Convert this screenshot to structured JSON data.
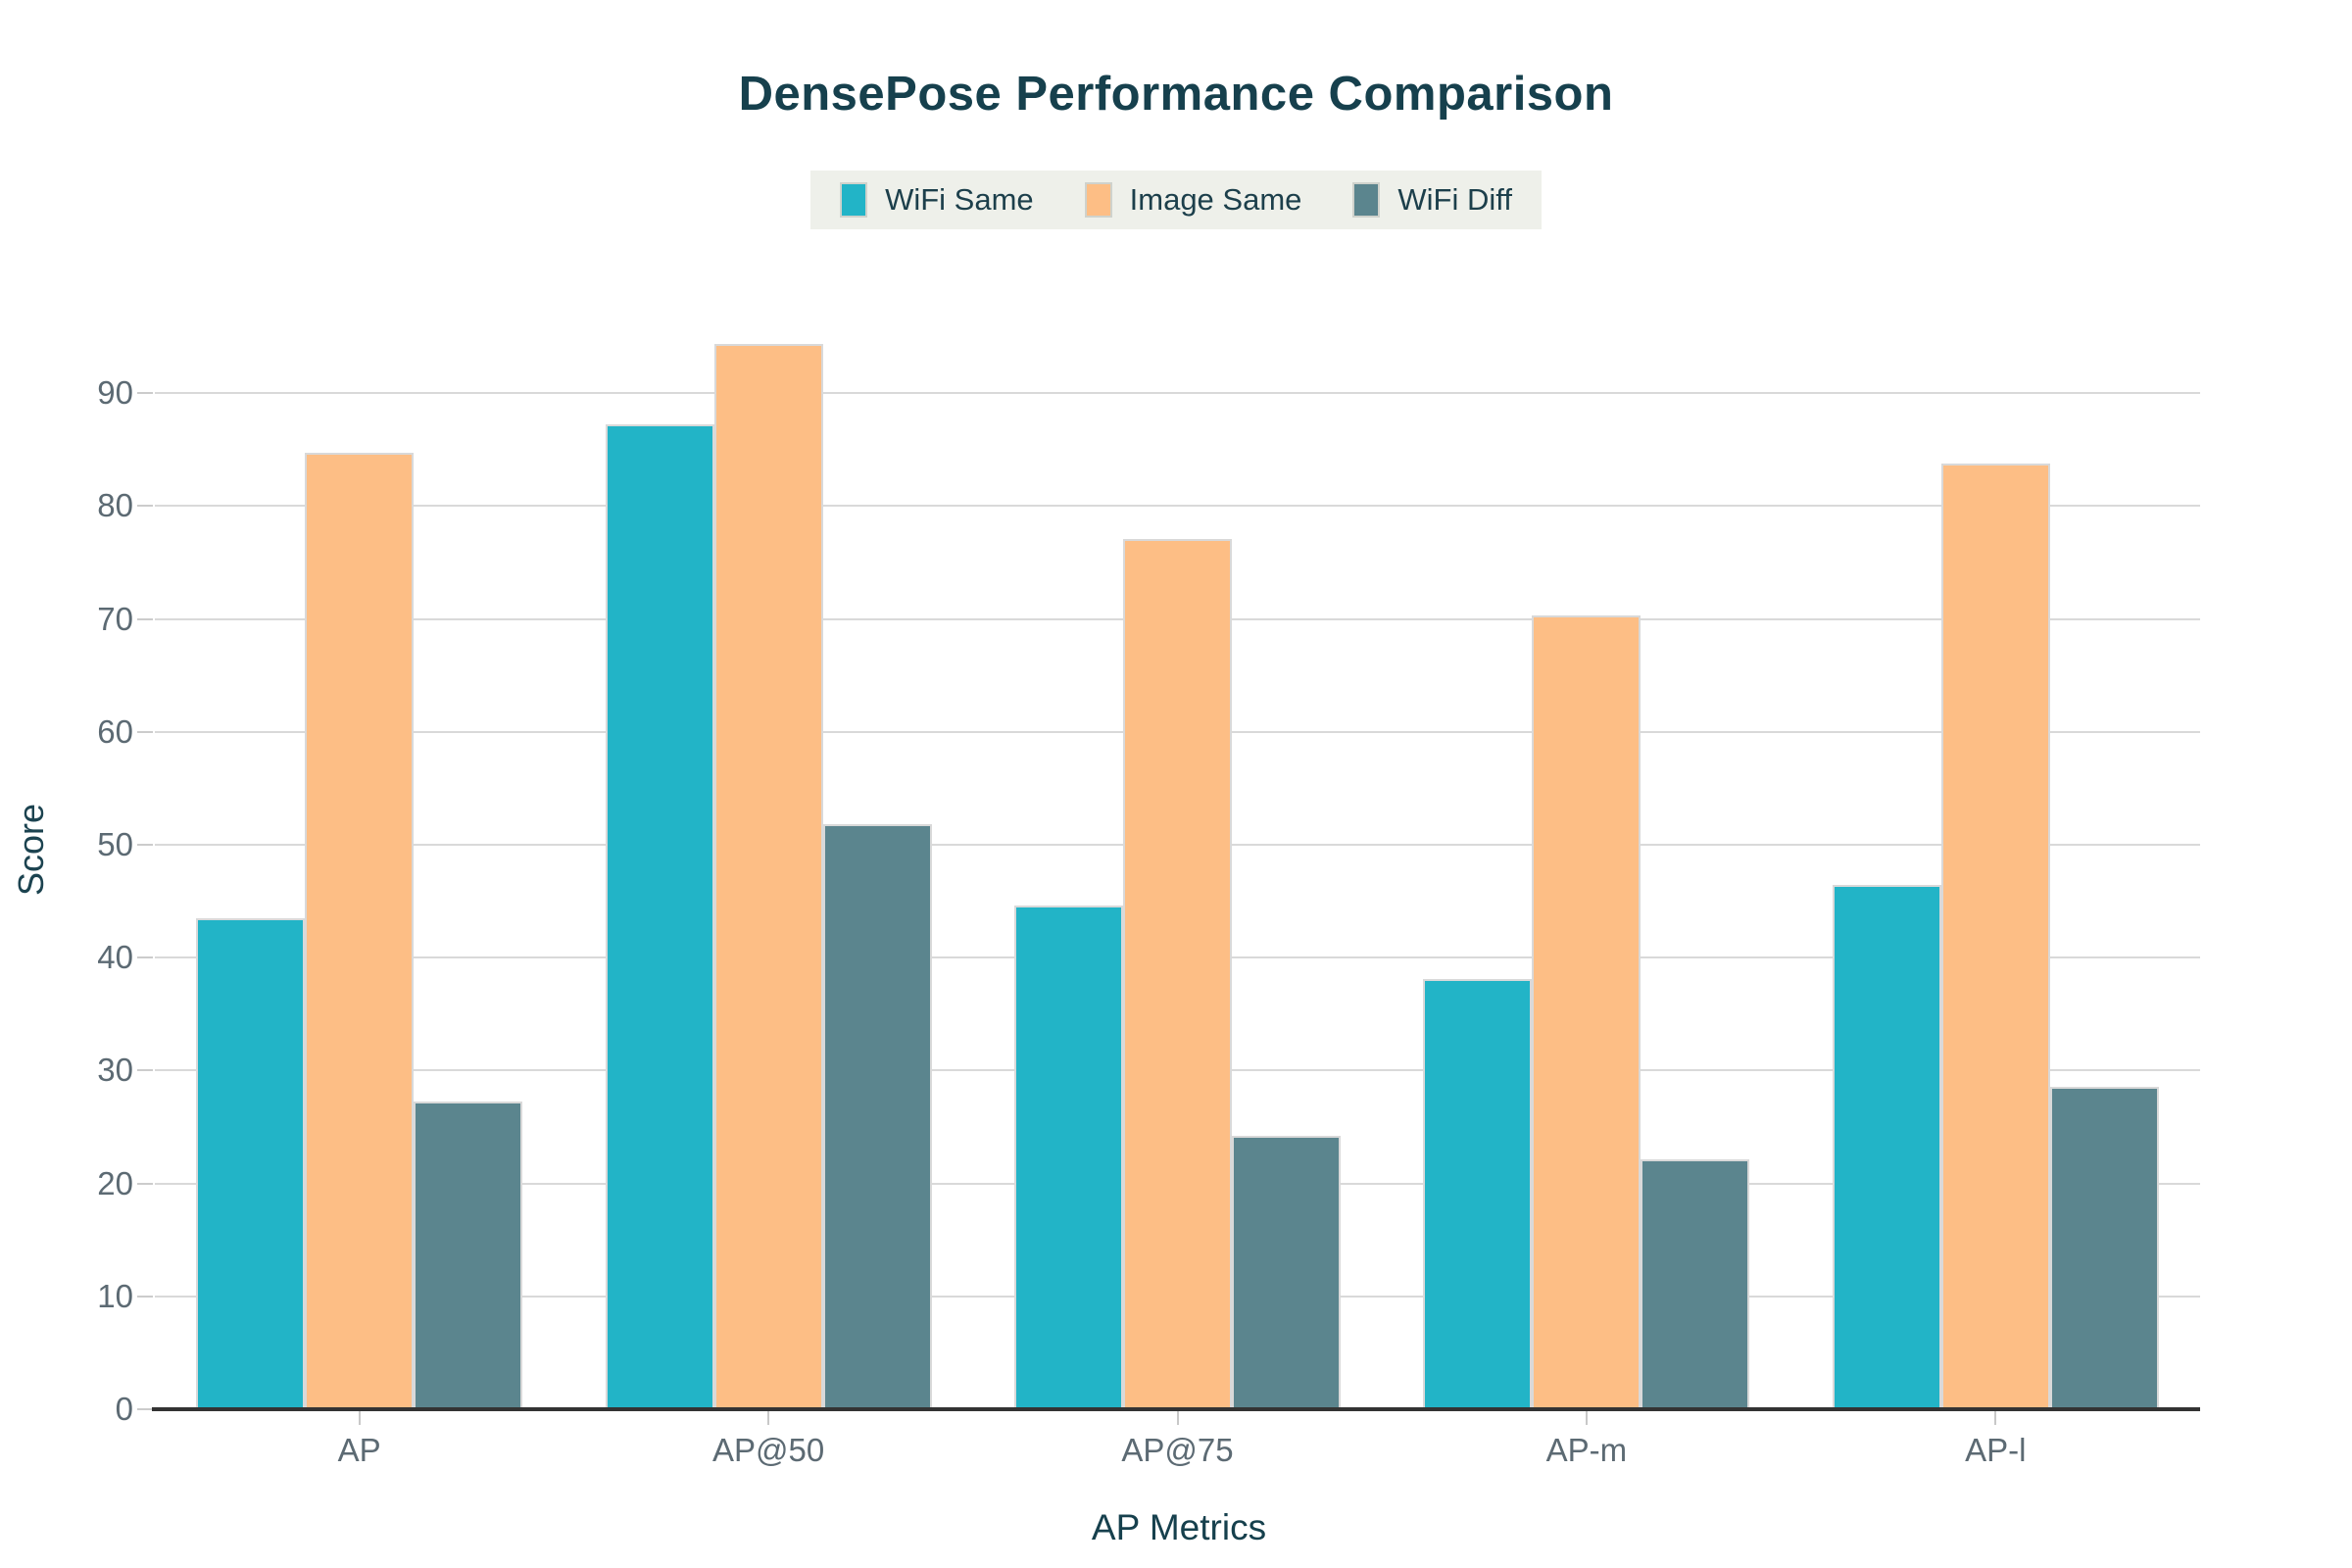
{
  "title": "DensePose Performance Comparison",
  "axes": {
    "x_title": "AP Metrics",
    "y_title": "Score"
  },
  "legend": {
    "position": "top-center",
    "background": "#eef0ea",
    "items": [
      "WiFi Same",
      "Image Same",
      "WiFi Diff"
    ]
  },
  "colors": {
    "wifi_same": "#22b4c7",
    "image_same": "#fdbe85",
    "wifi_diff": "#5b858e",
    "title_text": "#16404d",
    "tick_text": "#5c6a73",
    "gridline": "#d9d9d9",
    "axis_line": "#333333",
    "legend_background": "#eef0ea"
  },
  "chart_data": {
    "type": "bar",
    "title": "DensePose Performance Comparison",
    "xlabel": "AP Metrics",
    "ylabel": "Score",
    "categories": [
      "AP",
      "AP@50",
      "AP@75",
      "AP-m",
      "AP-l"
    ],
    "series": [
      {
        "name": "WiFi Same",
        "color": "#22b4c7",
        "values": [
          43.5,
          87.2,
          44.6,
          38.1,
          46.4
        ]
      },
      {
        "name": "Image Same",
        "color": "#fdbe85",
        "values": [
          84.7,
          94.4,
          77.1,
          70.3,
          83.8
        ]
      },
      {
        "name": "WiFi Diff",
        "color": "#5b858e",
        "values": [
          27.3,
          51.8,
          24.2,
          22.1,
          28.6
        ]
      }
    ],
    "yticks": [
      0,
      10,
      20,
      30,
      40,
      50,
      60,
      70,
      80,
      90
    ],
    "ylim": [
      0,
      99.7
    ],
    "grid": true,
    "legend_position": "top-center"
  }
}
